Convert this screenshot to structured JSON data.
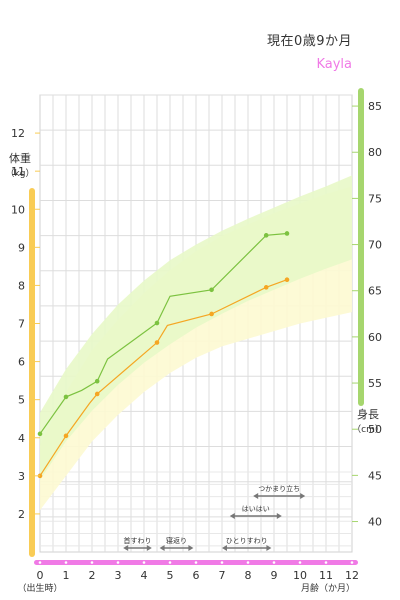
{
  "header": {
    "age_text": "現在0歳9か月",
    "name": "Kayla"
  },
  "colors": {
    "weight_band": "#fdfad2",
    "height_band": "#e8f8c8",
    "weight_line": "#f5a623",
    "height_line": "#7cc240",
    "weight_axis": "#f9cc55",
    "height_axis": "#a6d66e",
    "month_axis": "#f07ae6",
    "milestone": "#777777"
  },
  "chart_data": {
    "type": "line",
    "x_axis": {
      "range": [
        0,
        12
      ],
      "ticks": [
        0,
        1,
        2,
        3,
        4,
        5,
        6,
        7,
        8,
        9,
        10,
        11,
        12
      ],
      "tick_labels": [
        "0",
        "1",
        "2",
        "3",
        "4",
        "5",
        "6",
        "7",
        "8",
        "9",
        "10",
        "11",
        "12"
      ],
      "label": "月齢（か月）",
      "start_label": "（出生時）"
    },
    "y_left": {
      "title": "体重",
      "unit": "（kg）",
      "range": [
        1,
        13
      ],
      "ticks": [
        2,
        3,
        4,
        5,
        6,
        7,
        8,
        9,
        10,
        11,
        12
      ],
      "tick_labels": [
        "2",
        "3",
        "4",
        "5",
        "6",
        "7",
        "8",
        "9",
        "10",
        "11",
        "12"
      ]
    },
    "y_right": {
      "title": "身長",
      "unit": "（cm）",
      "range": [
        36.7,
        86.2
      ],
      "ticks": [
        40,
        45,
        50,
        55,
        60,
        65,
        70,
        75,
        80,
        85
      ],
      "tick_labels": [
        "40",
        "45",
        "50",
        "55",
        "60",
        "65",
        "70",
        "75",
        "80",
        "85"
      ]
    },
    "weight_band": {
      "lower": [
        [
          0,
          2.1
        ],
        [
          1,
          3.0
        ],
        [
          2,
          3.9
        ],
        [
          3,
          4.6
        ],
        [
          4,
          5.2
        ],
        [
          5,
          5.7
        ],
        [
          6,
          6.1
        ],
        [
          7,
          6.4
        ],
        [
          8,
          6.6
        ],
        [
          9,
          6.8
        ],
        [
          10,
          7.0
        ],
        [
          11,
          7.15
        ],
        [
          12,
          7.3
        ]
      ],
      "upper": [
        [
          0,
          3.8
        ],
        [
          1,
          5.2
        ],
        [
          2,
          6.3
        ],
        [
          3,
          7.1
        ],
        [
          4,
          7.8
        ],
        [
          5,
          8.4
        ],
        [
          6,
          8.9
        ],
        [
          7,
          9.3
        ],
        [
          8,
          9.6
        ],
        [
          9,
          9.9
        ],
        [
          10,
          10.15
        ],
        [
          11,
          10.4
        ],
        [
          12,
          10.6
        ]
      ]
    },
    "height_band": {
      "lower": [
        [
          0,
          44.5
        ],
        [
          1,
          48.7
        ],
        [
          2,
          52.0
        ],
        [
          3,
          54.8
        ],
        [
          4,
          57.2
        ],
        [
          5,
          59.2
        ],
        [
          6,
          61.0
        ],
        [
          7,
          62.5
        ],
        [
          8,
          63.9
        ],
        [
          9,
          65.1
        ],
        [
          10,
          66.3
        ],
        [
          11,
          67.4
        ],
        [
          12,
          68.4
        ]
      ],
      "upper": [
        [
          0,
          51.8
        ],
        [
          1,
          56.5
        ],
        [
          2,
          60.3
        ],
        [
          3,
          63.5
        ],
        [
          4,
          66.1
        ],
        [
          5,
          68.3
        ],
        [
          6,
          70.0
        ],
        [
          7,
          71.5
        ],
        [
          8,
          72.8
        ],
        [
          9,
          74.0
        ],
        [
          10,
          75.2
        ],
        [
          11,
          76.3
        ],
        [
          12,
          77.5
        ]
      ]
    },
    "weight_series": [
      [
        0,
        3.0
      ],
      [
        1,
        4.05
      ],
      [
        1.9,
        4.9
      ],
      [
        2.2,
        5.15
      ],
      [
        4.5,
        6.5
      ],
      [
        4.9,
        6.95
      ],
      [
        6.6,
        7.25
      ],
      [
        8.7,
        7.95
      ],
      [
        9.5,
        8.15
      ]
    ],
    "height_series": [
      [
        0,
        49.5
      ],
      [
        1,
        53.5
      ],
      [
        1.6,
        54.2
      ],
      [
        2.2,
        55.2
      ],
      [
        2.6,
        57.6
      ],
      [
        4.5,
        61.5
      ],
      [
        5.0,
        64.4
      ],
      [
        6.6,
        65.1
      ],
      [
        8.7,
        71.0
      ],
      [
        9.5,
        71.2
      ]
    ],
    "milestones": [
      {
        "label": "首すわり",
        "start": 3.2,
        "end": 4.3,
        "row": 0
      },
      {
        "label": "寝返り",
        "start": 4.6,
        "end": 5.9,
        "row": 0
      },
      {
        "label": "ひとりすわり",
        "start": 7.0,
        "end": 8.9,
        "row": 0
      },
      {
        "label": "はいはい",
        "start": 7.3,
        "end": 9.3,
        "row": 1
      },
      {
        "label": "つかまり立ち",
        "start": 8.2,
        "end": 10.2,
        "row": 2
      }
    ]
  }
}
